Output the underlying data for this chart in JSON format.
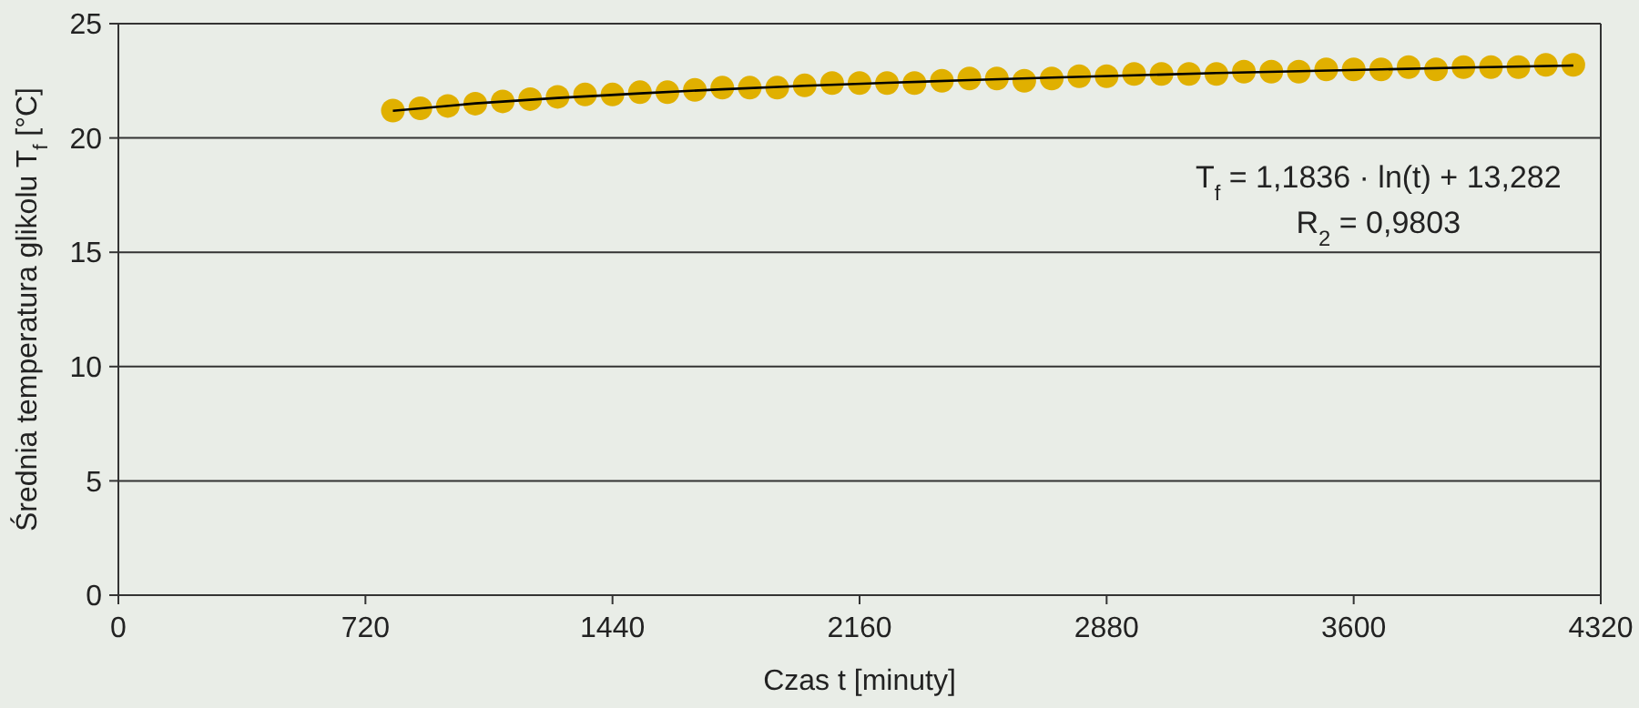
{
  "chart_data": {
    "type": "scatter",
    "xlabel": "Czas t [minuty]",
    "ylabel": "Średnia temperatura glikolu T$_{f}$ [°C]",
    "xlim": [
      0,
      4320
    ],
    "xticks": [
      0,
      720,
      1440,
      2160,
      2880,
      3600,
      4320
    ],
    "ylim": [
      0,
      25
    ],
    "yticks": [
      0,
      5,
      10,
      15,
      20,
      25
    ],
    "grid": "y",
    "marker": "circle",
    "annotations": [
      "T$_{f}$ = 1,1836 · ln(t) + 13,282",
      "R$_{2}$ = 0,9803"
    ],
    "series": [
      {
        "color": "#e0b000",
        "x": [
          800,
          880,
          960,
          1040,
          1120,
          1200,
          1280,
          1360,
          1440,
          1520,
          1600,
          1680,
          1760,
          1840,
          1920,
          2000,
          2080,
          2160,
          2240,
          2320,
          2400,
          2480,
          2560,
          2640,
          2720,
          2800,
          2880,
          2960,
          3040,
          3120,
          3200,
          3280,
          3360,
          3440,
          3520,
          3600,
          3680,
          3760,
          3840,
          3920,
          4000,
          4080,
          4160,
          4240
        ],
        "values": [
          21.2,
          21.3,
          21.4,
          21.5,
          21.6,
          21.7,
          21.8,
          21.9,
          21.9,
          22.0,
          22.0,
          22.1,
          22.2,
          22.2,
          22.2,
          22.3,
          22.4,
          22.4,
          22.4,
          22.4,
          22.5,
          22.6,
          22.6,
          22.5,
          22.6,
          22.7,
          22.7,
          22.8,
          22.8,
          22.8,
          22.8,
          22.9,
          22.9,
          22.9,
          23.0,
          23.0,
          23.0,
          23.1,
          23.0,
          23.1,
          23.1,
          23.1,
          23.2,
          23.2
        ]
      },
      {
        "type": "line",
        "color": "#000000",
        "line_style": "solid",
        "marker": "none",
        "x": [
          800,
          1040,
          1280,
          1520,
          1760,
          2000,
          2240,
          2480,
          2720,
          2960,
          3200,
          3440,
          3680,
          3920,
          4240
        ],
        "values": [
          21.19,
          21.51,
          21.75,
          21.95,
          22.13,
          22.28,
          22.41,
          22.53,
          22.64,
          22.74,
          22.84,
          22.92,
          23.0,
          23.08,
          23.17
        ]
      }
    ]
  }
}
